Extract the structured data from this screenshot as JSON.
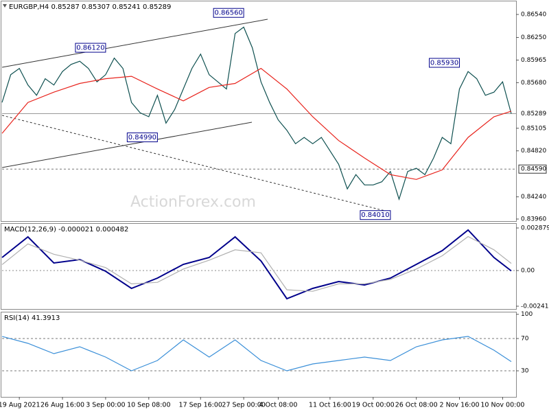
{
  "chart_data": [
    {
      "type": "line",
      "title": "EURGBP,H4  0.85287 0.85307 0.85241 0.85289",
      "watermark": "ActionForex.com",
      "categories": [
        null,
        null,
        "19 Aug 2021",
        null,
        null,
        null,
        null,
        "26 Aug 16:00",
        null,
        null,
        null,
        null,
        "3 Sep 00:00",
        null,
        null,
        null,
        null,
        "10 Sep 08:00",
        null,
        null,
        null,
        null,
        null,
        "17 Sep 16:00",
        null,
        null,
        null,
        null,
        "27 Sep 00:00",
        null,
        null,
        null,
        "4 Oct 08:00",
        null,
        null,
        null,
        null,
        null,
        "11 Oct 16:00",
        null,
        null,
        null,
        null,
        "19 Oct 00:00",
        null,
        null,
        null,
        null,
        "26 Oct 08:00",
        null,
        null,
        null,
        null,
        "2 Nov 16:00",
        null,
        null,
        null,
        null,
        "10 Nov 00:00",
        null
      ],
      "series": [
        {
          "color": "#0d4f4f",
          "values": [
            0.8543,
            0.8578,
            0.8586,
            0.8565,
            0.8552,
            0.8573,
            0.8565,
            0.8582,
            0.8591,
            0.8595,
            0.8586,
            0.8569,
            0.8578,
            0.8599,
            0.8586,
            0.8543,
            0.853,
            0.8525,
            0.8552,
            0.8517,
            0.8534,
            0.856,
            0.8586,
            0.8604,
            0.8578,
            0.8569,
            0.856,
            0.863,
            0.8638,
            0.8612,
            0.8569,
            0.8543,
            0.8521,
            0.8508,
            0.8491,
            0.8499,
            0.8491,
            0.8499,
            0.8482,
            0.8465,
            0.8434,
            0.8452,
            0.8439,
            0.8439,
            0.8443,
            0.8456,
            0.8421,
            0.8456,
            0.846,
            0.8452,
            0.8473,
            0.8499,
            0.8491,
            0.856,
            0.8582,
            0.8573,
            0.8552,
            0.8556,
            0.8569,
            0.85289
          ]
        },
        {
          "color": "#e8231c",
          "x": [
            0,
            3,
            6,
            9,
            12,
            15,
            18,
            21,
            24,
            27,
            30,
            33,
            36,
            39,
            42,
            45,
            48,
            51,
            54,
            57,
            59
          ],
          "values": [
            0.8504,
            0.8543,
            0.8556,
            0.8567,
            0.8573,
            0.8576,
            0.856,
            0.8545,
            0.8562,
            0.8567,
            0.8586,
            0.856,
            0.8525,
            0.8495,
            0.8473,
            0.8452,
            0.8446,
            0.8458,
            0.8499,
            0.8525,
            0.8532
          ]
        }
      ],
      "ylim": [
        0.86705,
        0.83934
      ],
      "yticks": [
        {
          "value": 0.8654,
          "label": "0.86540"
        },
        {
          "value": 0.8625,
          "label": "0.86250"
        },
        {
          "value": 0.85965,
          "label": "0.85965"
        },
        {
          "value": 0.8568,
          "label": "0.85680"
        },
        {
          "value": 0.85105,
          "label": "0.85105"
        },
        {
          "value": 0.8482,
          "label": "0.84820"
        },
        {
          "value": 0.8424,
          "label": "0.84240"
        },
        {
          "value": 0.8396,
          "label": "0.83960"
        }
      ],
      "annotations": [
        {
          "value": 0.8612,
          "label": "0.86120",
          "at": 12
        },
        {
          "value": 0.8656,
          "label": "0.86560",
          "at": 28
        },
        {
          "value": 0.8499,
          "label": "0.84990",
          "at": 18
        },
        {
          "value": 0.8401,
          "label": "0.84010",
          "at": 45
        },
        {
          "value": 0.8593,
          "label": "0.85930",
          "at": 53
        }
      ],
      "levels": [
        {
          "value": 0.8459,
          "label": "0.84590",
          "dashed": true
        },
        {
          "value": 0.85289,
          "label": "0.85289",
          "dashed": false
        }
      ]
    },
    {
      "type": "line",
      "title": "MACD(12,26,9) -0.000021 0.000482",
      "x": [
        0,
        3,
        6,
        9,
        12,
        15,
        18,
        21,
        24,
        27,
        30,
        33,
        36,
        39,
        42,
        45,
        48,
        51,
        54,
        57,
        59
      ],
      "series": [
        {
          "color": "#00008b",
          "values": [
            0.000882,
            0.002275,
            0.000511,
            0.000743,
            -4.6e-05,
            -0.001207,
            -0.000511,
            0.000418,
            0.000882,
            0.002275,
            0.00065,
            -0.001904,
            -0.001207,
            -0.000743,
            -0.000975,
            -0.000511,
            0.000418,
            0.001347,
            0.002739,
            0.000882,
            -2.1e-05
          ]
        },
        {
          "color": "#b0b0b0",
          "values": [
            0.0004,
            0.0018,
            0.0011,
            0.0007,
            0.0002,
            -0.0009,
            -0.0008,
            0.0001,
            0.0007,
            0.0014,
            0.0012,
            -0.0013,
            -0.0014,
            -0.0009,
            -0.0009,
            -0.0006,
            0.0001,
            0.001,
            0.0023,
            0.0014,
            0.000482
          ]
        }
      ],
      "ylim": [
        0.003157,
        -0.0026
      ],
      "yticks": [
        0.002879,
        {
          "value": 0,
          "label": "0.00"
        },
        -0.002412
      ]
    },
    {
      "type": "line",
      "title": "RSI(14) 41.3913",
      "x": [
        0,
        3,
        6,
        9,
        12,
        15,
        18,
        21,
        24,
        27,
        30,
        33,
        36,
        39,
        42,
        45,
        48,
        51,
        54,
        57,
        59
      ],
      "series": [
        {
          "color": "#3a8fd8",
          "values": [
            72.6,
            64,
            51.3,
            59.8,
            47,
            30,
            42.8,
            68.3,
            47,
            68.3,
            42.8,
            30,
            38.5,
            42.8,
            47,
            42.8,
            59.8,
            68.3,
            72.6,
            55.5,
            41.3913
          ]
        }
      ],
      "ylim": [
        102.3,
        -2.3
      ],
      "yticks": [
        100,
        70,
        30
      ],
      "levels": [
        {
          "value": 70,
          "dashed": true
        },
        {
          "value": 30,
          "dashed": true
        }
      ]
    }
  ]
}
